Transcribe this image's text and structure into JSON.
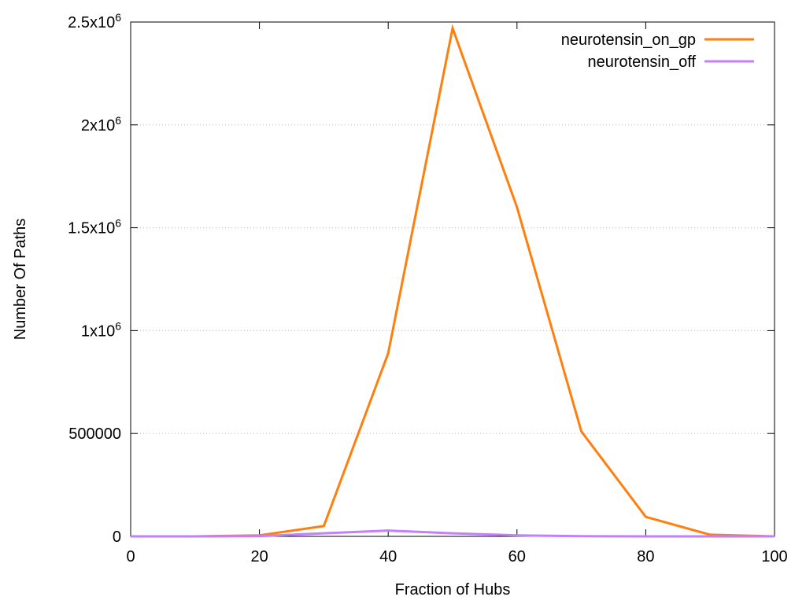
{
  "chart_data": {
    "type": "line",
    "xlabel": "Fraction of Hubs",
    "ylabel": "Number Of Paths",
    "xlim": [
      0,
      100
    ],
    "ylim": [
      0,
      2500000
    ],
    "grid": "horizontal-dotted",
    "legend_position": "top-right",
    "x_ticks": [
      {
        "value": 0,
        "label": "0"
      },
      {
        "value": 20,
        "label": "20"
      },
      {
        "value": 40,
        "label": "40"
      },
      {
        "value": 60,
        "label": "60"
      },
      {
        "value": 80,
        "label": "80"
      },
      {
        "value": 100,
        "label": "100"
      }
    ],
    "y_ticks": [
      {
        "value": 0,
        "mantissa": "0",
        "exp": ""
      },
      {
        "value": 500000,
        "mantissa": "500000",
        "exp": ""
      },
      {
        "value": 1000000,
        "mantissa": "1x10",
        "exp": "6"
      },
      {
        "value": 1500000,
        "mantissa": "1.5x10",
        "exp": "6"
      },
      {
        "value": 2000000,
        "mantissa": "2x10",
        "exp": "6"
      },
      {
        "value": 2500000,
        "mantissa": "2.5x10",
        "exp": "6"
      }
    ],
    "x": [
      0,
      10,
      20,
      30,
      40,
      50,
      60,
      70,
      80,
      90,
      100
    ],
    "series": [
      {
        "name": "neurotensin_on_gp",
        "color": "#ff7f0e",
        "values": [
          0,
          0,
          5000,
          50000,
          890000,
          2470000,
          1600000,
          510000,
          95000,
          8000,
          0
        ]
      },
      {
        "name": "neurotensin_off",
        "color": "#c080ff",
        "values": [
          0,
          0,
          1000,
          15000,
          28000,
          15000,
          5000,
          1000,
          0,
          0,
          0
        ]
      }
    ]
  }
}
